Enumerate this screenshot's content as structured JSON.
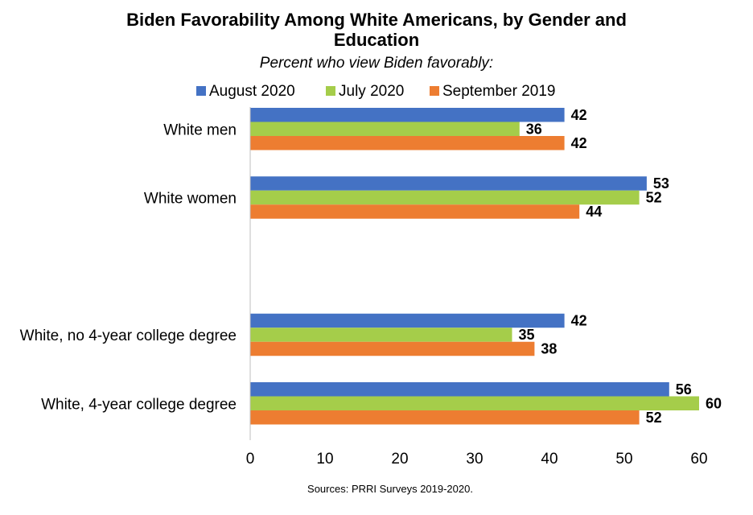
{
  "chart_data": {
    "type": "bar",
    "orientation": "horizontal",
    "title_line1": "Biden Favorability Among White Americans, by Gender and",
    "title_line2": "Education",
    "subtitle": "Percent who view Biden favorably:",
    "source": "Sources: PRRI Surveys 2019-2020.",
    "categories": [
      "White men",
      "White women",
      "",
      "White, no 4-year college degree",
      "White, 4-year college degree"
    ],
    "series": [
      {
        "name": "August 2020",
        "color": "#4472C4",
        "values": [
          42,
          53,
          null,
          42,
          56
        ]
      },
      {
        "name": "July 2020",
        "color": "#A5CD4A",
        "values": [
          36,
          52,
          null,
          35,
          60
        ]
      },
      {
        "name": "September 2019",
        "color": "#ED7D31",
        "values": [
          42,
          44,
          null,
          38,
          52
        ]
      }
    ],
    "xlim": [
      0,
      60
    ],
    "xticks": [
      0,
      10,
      20,
      30,
      40,
      50,
      60
    ],
    "grid": false,
    "legend_position": "top"
  }
}
